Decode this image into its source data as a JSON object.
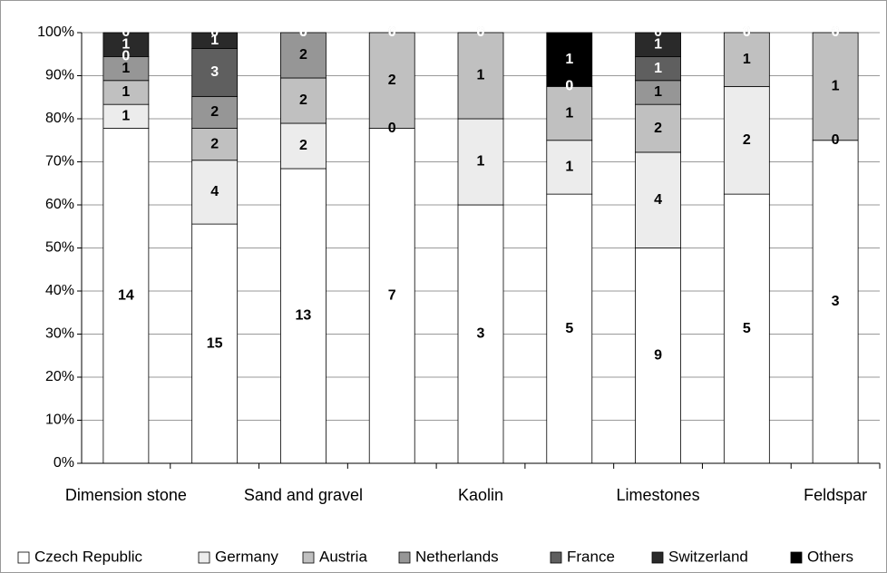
{
  "chart_data": {
    "type": "bar",
    "stacked": "percent",
    "categories": [
      "Dimension stone",
      null,
      "Sand and gravel",
      null,
      "Kaolin",
      null,
      "Limestones",
      null,
      "Feldspar"
    ],
    "series": [
      {
        "name": "Czech Republic",
        "color": "#ffffff",
        "values": [
          14,
          15,
          13,
          7,
          3,
          5,
          9,
          5,
          3
        ]
      },
      {
        "name": "Germany",
        "color": "#ececec",
        "values": [
          1,
          4,
          2,
          0,
          1,
          1,
          4,
          2,
          0
        ]
      },
      {
        "name": "Austria",
        "color": "#c0c0c0",
        "values": [
          1,
          2,
          2,
          2,
          1,
          1,
          2,
          1,
          1
        ]
      },
      {
        "name": "Netherlands",
        "color": "#969696",
        "values": [
          1,
          2,
          2,
          0,
          0,
          0,
          1,
          0,
          0
        ]
      },
      {
        "name": "France",
        "color": "#5f5f5f",
        "values": [
          0,
          3,
          0,
          0,
          0,
          0,
          1,
          0,
          0
        ]
      },
      {
        "name": "Switzerland",
        "color": "#2a2a2a",
        "values": [
          1,
          1,
          0,
          0,
          0,
          0,
          1,
          0,
          0
        ]
      },
      {
        "name": "Others",
        "color": "#000000",
        "values": [
          0,
          0,
          0,
          0,
          0,
          1,
          0,
          0,
          0
        ]
      }
    ],
    "ylim": [
      0,
      100
    ],
    "yticks": [
      {
        "value": 0,
        "label": "0%"
      },
      {
        "value": 10,
        "label": "10%"
      },
      {
        "value": 20,
        "label": "20%"
      },
      {
        "value": 30,
        "label": "30%"
      },
      {
        "value": 40,
        "label": "40%"
      },
      {
        "value": 50,
        "label": "50%"
      },
      {
        "value": 60,
        "label": "60%"
      },
      {
        "value": 70,
        "label": "70%"
      },
      {
        "value": 80,
        "label": "80%"
      },
      {
        "value": 90,
        "label": "90%"
      },
      {
        "value": 100,
        "label": "100%"
      }
    ],
    "grid": true,
    "legend": "bottom"
  }
}
